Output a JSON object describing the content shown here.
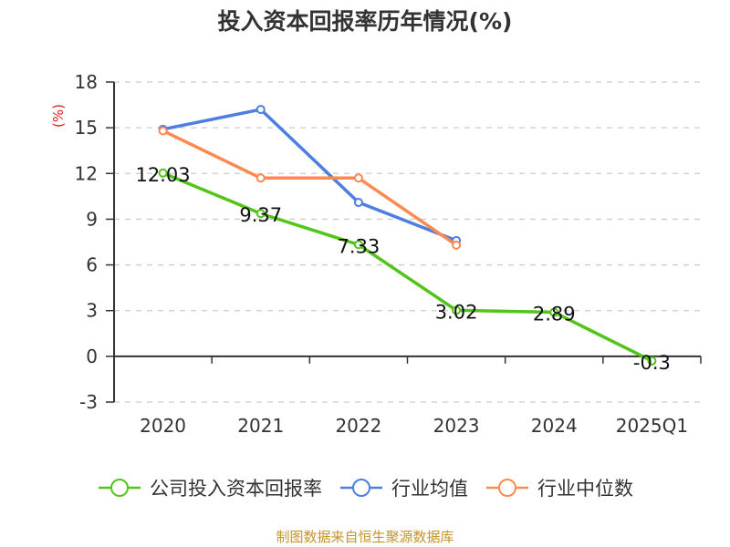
{
  "title": "投入资本回报率历年情况(%)",
  "y_unit_label": "(%)",
  "source": "制图数据来自恒生聚源数据库",
  "colors": {
    "company": "#52c41a",
    "industry_avg": "#4e7fe0",
    "industry_median": "#ff8a50",
    "y_unit": "#e0201b",
    "source": "#c8922a",
    "grid": "#cccccc",
    "axis": "#333333"
  },
  "legend": [
    {
      "label": "公司投入资本回报率",
      "color": "#52c41a"
    },
    {
      "label": "行业均值",
      "color": "#4e7fe0"
    },
    {
      "label": "行业中位数",
      "color": "#ff8a50"
    }
  ],
  "chart_data": {
    "type": "line",
    "title": "投入资本回报率历年情况(%)",
    "xlabel": "",
    "ylabel": "(%)",
    "categories": [
      "2020",
      "2021",
      "2022",
      "2023",
      "2024",
      "2025Q1"
    ],
    "ylim": [
      -3,
      18
    ],
    "yticks": [
      -3,
      0,
      3,
      6,
      9,
      12,
      15,
      18
    ],
    "grid": true,
    "legend_position": "bottom",
    "series": [
      {
        "name": "公司投入资本回报率",
        "values": [
          12.03,
          9.37,
          7.33,
          3.02,
          2.89,
          -0.3
        ],
        "labels": [
          "12.03",
          "9.37",
          "7.33",
          "3.02",
          "2.89",
          "-0.3"
        ]
      },
      {
        "name": "行业均值",
        "values": [
          14.9,
          16.2,
          10.1,
          7.6,
          null,
          null
        ]
      },
      {
        "name": "行业中位数",
        "values": [
          14.8,
          11.7,
          11.7,
          7.3,
          null,
          null
        ]
      }
    ]
  }
}
